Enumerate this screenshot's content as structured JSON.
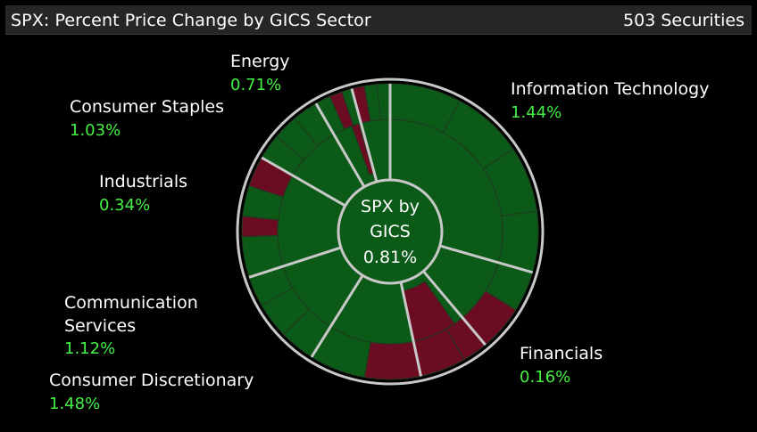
{
  "header": {
    "title": "SPX: Percent Price Change by GICS Sector",
    "count": "503 Securities"
  },
  "colors": {
    "background": "#000000",
    "positive": "#0b5a18",
    "negative": "#6b0c22",
    "separator": "#c8c8c8",
    "label_value": "#45f045"
  },
  "chart_data": {
    "type": "sunburst",
    "title": "SPX: Percent Price Change by GICS Sector",
    "center": {
      "line1": "SPX by",
      "line2": "GICS",
      "value": "0.81%"
    },
    "sectors": [
      {
        "name": "Information Technology",
        "value": 1.44,
        "value_label": "1.44%"
      },
      {
        "name": "Financials",
        "value": 0.16,
        "value_label": "0.16%"
      },
      {
        "name": "Consumer Discretionary",
        "value": 1.48,
        "value_label": "1.48%"
      },
      {
        "name": "Communication Services",
        "value": 1.12,
        "value_label": "1.12%"
      },
      {
        "name": "Industrials",
        "value": 0.34,
        "value_label": "0.34%"
      },
      {
        "name": "Consumer Staples",
        "value": 1.03,
        "value_label": "1.03%"
      },
      {
        "name": "Energy",
        "value": 0.71,
        "value_label": "0.71%"
      }
    ]
  }
}
